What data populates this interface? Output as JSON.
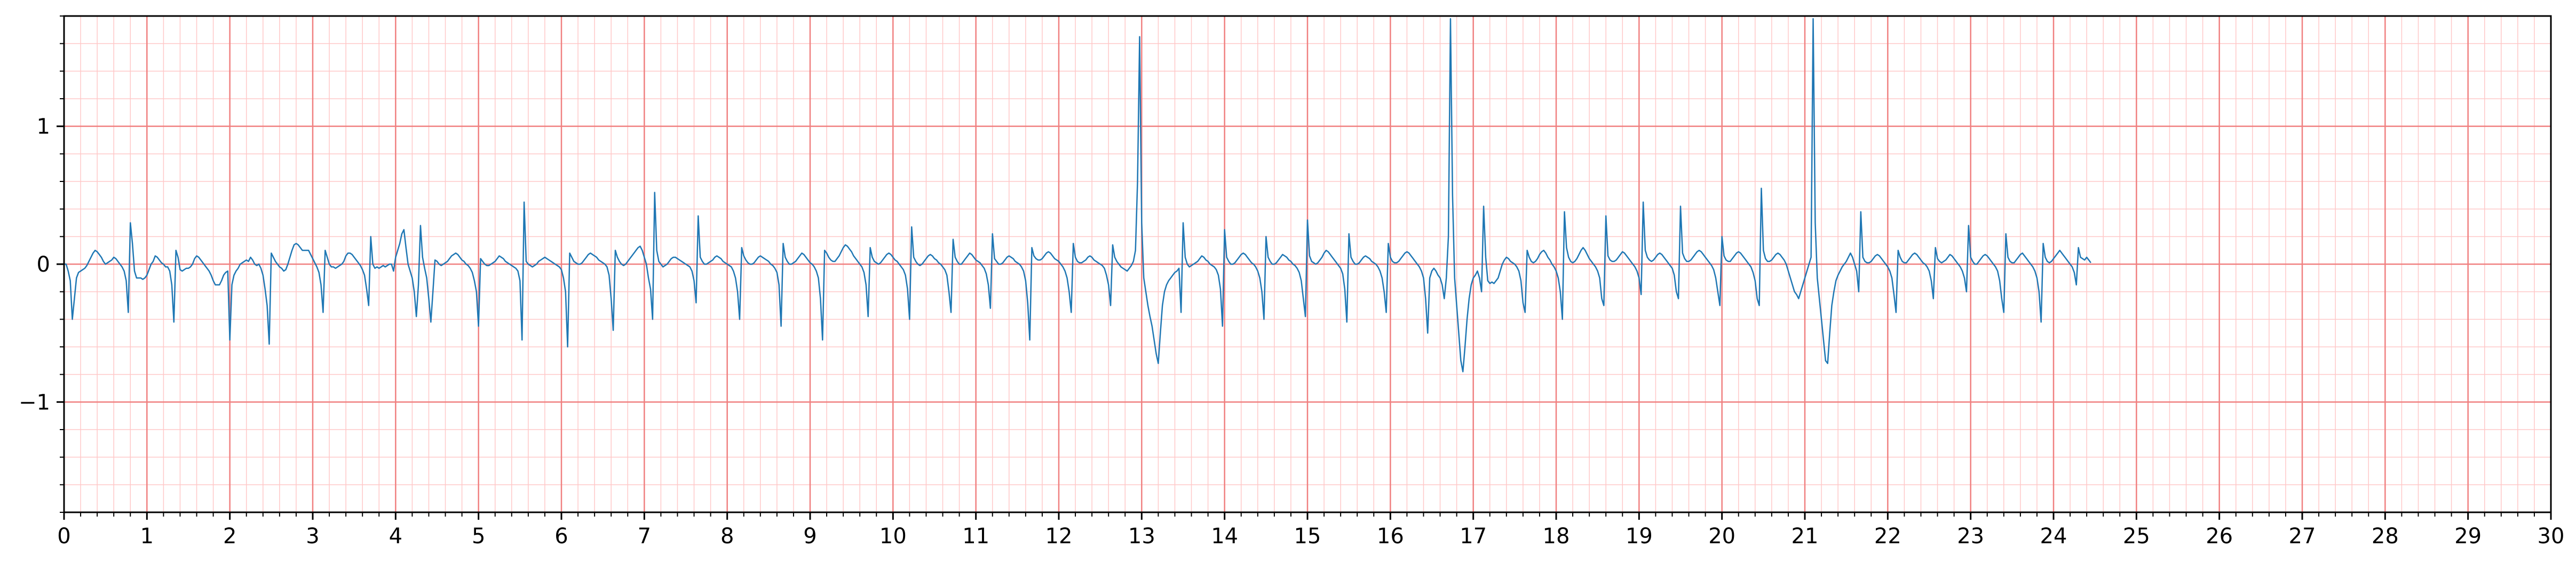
{
  "chart_data": {
    "type": "line",
    "title": "",
    "xlabel": "",
    "ylabel": "",
    "xlim": [
      0,
      30
    ],
    "ylim": [
      -1.8,
      1.8
    ],
    "x_ticks": [
      "0",
      "1",
      "2",
      "3",
      "4",
      "5",
      "6",
      "7",
      "8",
      "9",
      "10",
      "11",
      "12",
      "13",
      "14",
      "15",
      "16",
      "17",
      "18",
      "19",
      "20",
      "21",
      "22",
      "23",
      "24",
      "25",
      "26",
      "27",
      "28",
      "29",
      "30"
    ],
    "y_ticks": [
      {
        "value": 1,
        "label": "1"
      },
      {
        "value": 0,
        "label": "0"
      },
      {
        "value": -1,
        "label": "−1"
      }
    ],
    "grid": {
      "major_x_step": 1,
      "major_y_step": 1,
      "minor_x_step": 0.2,
      "minor_y_step": 0.2,
      "major_color": "#f08080",
      "minor_color": "#ffc8c8"
    },
    "line_color": "#1f77b4",
    "sample_interval_s": 0.025,
    "series": [
      {
        "values": [
          0.0,
          0.0,
          -0.05,
          -0.12,
          -0.4,
          -0.25,
          -0.1,
          -0.06,
          -0.05,
          -0.04,
          -0.03,
          -0.01,
          0.02,
          0.05,
          0.08,
          0.1,
          0.09,
          0.07,
          0.05,
          0.02,
          0.0,
          0.01,
          0.02,
          0.03,
          0.05,
          0.04,
          0.02,
          0.0,
          -0.02,
          -0.05,
          -0.12,
          -0.35,
          0.3,
          0.15,
          -0.05,
          -0.1,
          -0.1,
          -0.1,
          -0.11,
          -0.1,
          -0.08,
          -0.04,
          0.0,
          0.02,
          0.06,
          0.05,
          0.03,
          0.01,
          0.0,
          -0.02,
          -0.02,
          -0.05,
          -0.15,
          -0.42,
          0.1,
          0.05,
          -0.04,
          -0.05,
          -0.04,
          -0.03,
          -0.03,
          -0.02,
          0.0,
          0.04,
          0.06,
          0.05,
          0.03,
          0.01,
          -0.01,
          -0.03,
          -0.05,
          -0.08,
          -0.12,
          -0.15,
          -0.15,
          -0.15,
          -0.12,
          -0.08,
          -0.06,
          -0.05,
          -0.55,
          -0.15,
          -0.08,
          -0.05,
          -0.03,
          0.0,
          0.01,
          0.02,
          0.03,
          0.02,
          0.05,
          0.03,
          0.0,
          -0.01,
          0.0,
          -0.03,
          -0.08,
          -0.18,
          -0.3,
          -0.58,
          0.08,
          0.05,
          0.02,
          0.0,
          -0.02,
          -0.03,
          -0.05,
          -0.04,
          0.0,
          0.05,
          0.1,
          0.14,
          0.15,
          0.14,
          0.12,
          0.1,
          0.1,
          0.1,
          0.1,
          0.07,
          0.04,
          0.01,
          -0.02,
          -0.06,
          -0.15,
          -0.35,
          0.1,
          0.05,
          0.0,
          -0.02,
          -0.02,
          -0.03,
          -0.02,
          -0.01,
          0.0,
          0.02,
          0.06,
          0.08,
          0.08,
          0.07,
          0.05,
          0.03,
          0.01,
          -0.01,
          -0.04,
          -0.08,
          -0.18,
          -0.3,
          0.2,
          0.0,
          -0.03,
          -0.02,
          -0.03,
          -0.02,
          -0.01,
          -0.02,
          -0.01,
          0.0,
          0.0,
          -0.05,
          0.05,
          0.1,
          0.15,
          0.22,
          0.25,
          0.12,
          0.0,
          -0.05,
          -0.1,
          -0.2,
          -0.38,
          -0.15,
          0.28,
          0.05,
          -0.03,
          -0.1,
          -0.25,
          -0.42,
          -0.2,
          0.03,
          0.02,
          0.0,
          -0.01,
          0.0,
          0.01,
          0.02,
          0.04,
          0.06,
          0.07,
          0.08,
          0.07,
          0.05,
          0.03,
          0.02,
          0.0,
          -0.01,
          -0.03,
          -0.06,
          -0.12,
          -0.2,
          -0.45,
          0.04,
          0.02,
          0.0,
          -0.01,
          -0.01,
          0.0,
          0.01,
          0.02,
          0.04,
          0.06,
          0.05,
          0.04,
          0.02,
          0.01,
          0.0,
          -0.01,
          -0.02,
          -0.03,
          -0.05,
          -0.12,
          -0.55,
          0.45,
          0.02,
          0.0,
          -0.01,
          -0.02,
          -0.01,
          0.0,
          0.02,
          0.03,
          0.04,
          0.05,
          0.04,
          0.03,
          0.02,
          0.01,
          0.0,
          -0.01,
          -0.02,
          -0.04,
          -0.1,
          -0.2,
          -0.6,
          0.08,
          0.05,
          0.02,
          0.01,
          0.0,
          0.0,
          0.01,
          0.03,
          0.05,
          0.07,
          0.08,
          0.07,
          0.06,
          0.05,
          0.03,
          0.02,
          0.01,
          0.0,
          -0.02,
          -0.08,
          -0.25,
          -0.48,
          0.1,
          0.05,
          0.02,
          0.0,
          -0.01,
          0.0,
          0.02,
          0.04,
          0.06,
          0.08,
          0.1,
          0.12,
          0.13,
          0.1,
          0.05,
          0.0,
          -0.1,
          -0.18,
          -0.4,
          0.52,
          0.1,
          0.02,
          0.0,
          -0.02,
          -0.01,
          0.0,
          0.02,
          0.04,
          0.05,
          0.05,
          0.04,
          0.03,
          0.02,
          0.01,
          0.0,
          -0.01,
          -0.02,
          -0.05,
          -0.12,
          -0.28,
          0.35,
          0.05,
          0.02,
          0.0,
          0.0,
          0.01,
          0.02,
          0.03,
          0.05,
          0.06,
          0.05,
          0.04,
          0.02,
          0.01,
          0.0,
          -0.01,
          -0.02,
          -0.05,
          -0.1,
          -0.2,
          -0.4,
          0.12,
          0.06,
          0.03,
          0.01,
          0.0,
          0.0,
          0.01,
          0.03,
          0.05,
          0.06,
          0.05,
          0.04,
          0.03,
          0.02,
          0.0,
          -0.01,
          -0.03,
          -0.06,
          -0.15,
          -0.45,
          0.15,
          0.05,
          0.02,
          0.0,
          0.0,
          0.01,
          0.02,
          0.04,
          0.06,
          0.08,
          0.07,
          0.05,
          0.03,
          0.01,
          0.0,
          -0.02,
          -0.05,
          -0.1,
          -0.25,
          -0.55,
          0.1,
          0.08,
          0.05,
          0.03,
          0.02,
          0.02,
          0.04,
          0.06,
          0.09,
          0.12,
          0.14,
          0.13,
          0.11,
          0.09,
          0.06,
          0.04,
          0.02,
          0.0,
          -0.02,
          -0.06,
          -0.15,
          -0.38,
          0.12,
          0.05,
          0.02,
          0.01,
          0.0,
          0.01,
          0.03,
          0.05,
          0.07,
          0.08,
          0.07,
          0.05,
          0.03,
          0.02,
          0.0,
          -0.02,
          -0.04,
          -0.08,
          -0.18,
          -0.4,
          0.27,
          0.05,
          0.02,
          0.0,
          -0.01,
          0.0,
          0.02,
          0.04,
          0.06,
          0.07,
          0.06,
          0.04,
          0.03,
          0.01,
          0.0,
          -0.02,
          -0.04,
          -0.08,
          -0.2,
          -0.35,
          0.18,
          0.05,
          0.02,
          0.0,
          0.0,
          0.02,
          0.04,
          0.06,
          0.08,
          0.07,
          0.05,
          0.03,
          0.02,
          0.01,
          -0.01,
          -0.03,
          -0.07,
          -0.15,
          -0.32,
          0.22,
          0.04,
          0.02,
          0.0,
          0.0,
          0.01,
          0.03,
          0.05,
          0.06,
          0.05,
          0.04,
          0.02,
          0.01,
          0.0,
          -0.02,
          -0.05,
          -0.12,
          -0.28,
          -0.55,
          0.12,
          0.06,
          0.04,
          0.03,
          0.03,
          0.04,
          0.06,
          0.08,
          0.09,
          0.08,
          0.06,
          0.04,
          0.03,
          0.02,
          0.0,
          -0.02,
          -0.05,
          -0.1,
          -0.2,
          -0.35,
          0.15,
          0.05,
          0.02,
          0.01,
          0.01,
          0.02,
          0.03,
          0.05,
          0.06,
          0.05,
          0.03,
          0.02,
          0.01,
          0.0,
          -0.01,
          -0.03,
          -0.08,
          -0.15,
          -0.3,
          0.14,
          0.05,
          0.02,
          0.0,
          -0.02,
          -0.03,
          -0.04,
          -0.05,
          -0.03,
          -0.01,
          0.02,
          0.1,
          0.6,
          1.65,
          0.3,
          -0.1,
          -0.2,
          -0.3,
          -0.38,
          -0.45,
          -0.55,
          -0.65,
          -0.72,
          -0.5,
          -0.3,
          -0.2,
          -0.15,
          -0.12,
          -0.1,
          -0.08,
          -0.06,
          -0.05,
          -0.03,
          -0.35,
          0.3,
          0.05,
          0.0,
          -0.02,
          -0.01,
          0.0,
          0.01,
          0.02,
          0.04,
          0.06,
          0.05,
          0.03,
          0.02,
          0.0,
          -0.01,
          -0.02,
          -0.04,
          -0.08,
          -0.18,
          -0.45,
          0.25,
          0.05,
          0.02,
          0.0,
          0.0,
          0.01,
          0.03,
          0.05,
          0.07,
          0.08,
          0.07,
          0.05,
          0.03,
          0.01,
          0.0,
          -0.02,
          -0.05,
          -0.1,
          -0.2,
          -0.4,
          0.2,
          0.05,
          0.02,
          0.0,
          0.0,
          0.01,
          0.03,
          0.05,
          0.07,
          0.06,
          0.05,
          0.03,
          0.02,
          0.0,
          -0.01,
          -0.03,
          -0.06,
          -0.12,
          -0.25,
          -0.38,
          0.32,
          0.06,
          0.02,
          0.01,
          0.0,
          0.01,
          0.03,
          0.05,
          0.08,
          0.1,
          0.09,
          0.07,
          0.05,
          0.03,
          0.01,
          -0.01,
          -0.03,
          -0.07,
          -0.18,
          -0.42,
          0.22,
          0.05,
          0.02,
          0.0,
          0.0,
          0.01,
          0.03,
          0.05,
          0.06,
          0.05,
          0.04,
          0.02,
          0.01,
          0.0,
          -0.02,
          -0.05,
          -0.1,
          -0.2,
          -0.35,
          0.15,
          0.05,
          0.02,
          0.01,
          0.01,
          0.02,
          0.04,
          0.06,
          0.08,
          0.09,
          0.08,
          0.06,
          0.04,
          0.02,
          0.0,
          -0.02,
          -0.05,
          -0.1,
          -0.25,
          -0.5,
          -0.1,
          -0.05,
          -0.03,
          -0.05,
          -0.08,
          -0.1,
          -0.15,
          -0.25,
          -0.1,
          0.2,
          1.78,
          0.5,
          -0.1,
          -0.3,
          -0.5,
          -0.7,
          -0.78,
          -0.6,
          -0.4,
          -0.25,
          -0.15,
          -0.1,
          -0.08,
          -0.05,
          -0.1,
          -0.2,
          0.42,
          0.05,
          -0.12,
          -0.14,
          -0.13,
          -0.14,
          -0.12,
          -0.1,
          -0.05,
          0.0,
          0.03,
          0.05,
          0.04,
          0.02,
          0.01,
          0.0,
          -0.02,
          -0.05,
          -0.12,
          -0.28,
          -0.35,
          0.1,
          0.05,
          0.02,
          0.01,
          0.02,
          0.04,
          0.07,
          0.09,
          0.1,
          0.08,
          0.05,
          0.03,
          0.0,
          -0.02,
          -0.05,
          -0.1,
          -0.2,
          -0.4,
          0.38,
          0.12,
          0.05,
          0.02,
          0.01,
          0.02,
          0.04,
          0.07,
          0.1,
          0.12,
          0.1,
          0.07,
          0.04,
          0.02,
          0.0,
          -0.02,
          -0.05,
          -0.1,
          -0.25,
          -0.3,
          0.35,
          0.06,
          0.03,
          0.02,
          0.02,
          0.03,
          0.05,
          0.07,
          0.09,
          0.08,
          0.06,
          0.04,
          0.02,
          0.0,
          -0.02,
          -0.05,
          -0.1,
          -0.22,
          0.45,
          0.1,
          0.05,
          0.03,
          0.02,
          0.03,
          0.05,
          0.07,
          0.08,
          0.07,
          0.05,
          0.03,
          0.01,
          -0.01,
          -0.03,
          -0.08,
          -0.2,
          -0.25,
          0.42,
          0.08,
          0.04,
          0.02,
          0.02,
          0.03,
          0.05,
          0.07,
          0.09,
          0.1,
          0.09,
          0.07,
          0.05,
          0.03,
          0.01,
          -0.01,
          -0.04,
          -0.1,
          -0.2,
          -0.3,
          0.2,
          0.06,
          0.03,
          0.02,
          0.02,
          0.04,
          0.06,
          0.08,
          0.09,
          0.08,
          0.06,
          0.04,
          0.02,
          0.0,
          -0.02,
          -0.06,
          -0.12,
          -0.25,
          -0.3,
          0.55,
          0.1,
          0.04,
          0.02,
          0.02,
          0.03,
          0.05,
          0.07,
          0.08,
          0.07,
          0.05,
          0.03,
          0.0,
          -0.05,
          -0.1,
          -0.15,
          -0.2,
          -0.22,
          -0.25,
          -0.2,
          -0.15,
          -0.1,
          -0.05,
          0.0,
          0.05,
          1.78,
          0.3,
          -0.1,
          -0.25,
          -0.4,
          -0.55,
          -0.7,
          -0.72,
          -0.5,
          -0.3,
          -0.2,
          -0.12,
          -0.08,
          -0.05,
          -0.02,
          0.0,
          0.02,
          0.05,
          0.08,
          0.05,
          0.0,
          -0.05,
          -0.2,
          0.38,
          0.05,
          0.02,
          0.01,
          0.01,
          0.02,
          0.04,
          0.06,
          0.07,
          0.06,
          0.04,
          0.02,
          0.0,
          -0.02,
          -0.05,
          -0.1,
          -0.22,
          -0.35,
          0.1,
          0.05,
          0.02,
          0.01,
          0.01,
          0.03,
          0.05,
          0.07,
          0.08,
          0.07,
          0.05,
          0.03,
          0.01,
          0.0,
          -0.02,
          -0.05,
          -0.12,
          -0.25,
          0.12,
          0.04,
          0.02,
          0.01,
          0.02,
          0.03,
          0.05,
          0.07,
          0.06,
          0.04,
          0.02,
          0.0,
          -0.02,
          -0.05,
          -0.1,
          -0.2,
          0.28,
          0.05,
          0.02,
          0.0,
          0.0,
          0.02,
          0.04,
          0.06,
          0.07,
          0.06,
          0.04,
          0.02,
          0.0,
          -0.02,
          -0.05,
          -0.12,
          -0.25,
          -0.35,
          0.22,
          0.05,
          0.02,
          0.01,
          0.01,
          0.03,
          0.05,
          0.07,
          0.08,
          0.06,
          0.04,
          0.02,
          0.0,
          -0.02,
          -0.05,
          -0.1,
          -0.2,
          -0.42,
          0.15,
          0.05,
          0.02,
          0.01,
          0.02,
          0.04,
          0.06,
          0.08,
          0.1,
          0.08,
          0.06,
          0.04,
          0.02,
          0.0,
          -0.02,
          -0.06,
          -0.15,
          0.12,
          0.05,
          0.04,
          0.03,
          0.05,
          0.03,
          0.01
        ]
      }
    ]
  }
}
